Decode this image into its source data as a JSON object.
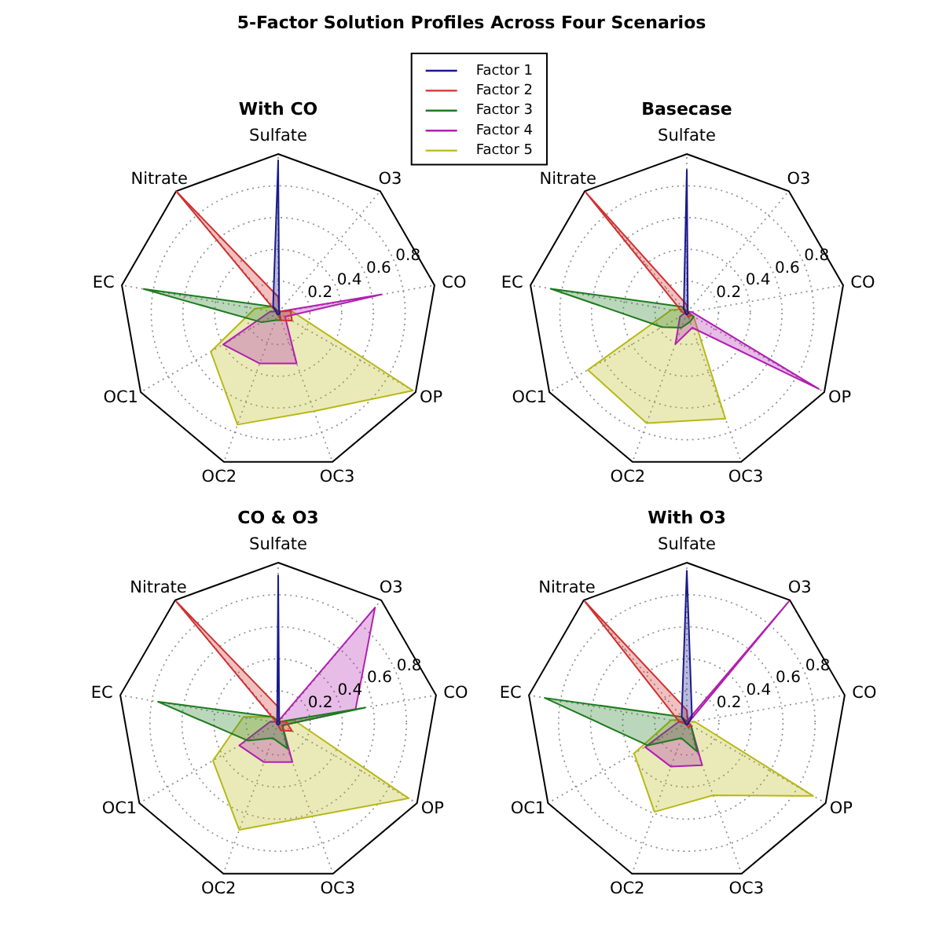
{
  "chart_data": [
    {
      "type": "radar",
      "title": "5-Factor Solution Profiles Across Four Scenarios",
      "subtitle": "With CO",
      "categories": [
        "Sulfate",
        "O3",
        "CO",
        "OP",
        "OC3",
        "OC2",
        "OC1",
        "EC",
        "Nitrate"
      ],
      "series": [
        {
          "name": "Factor 1",
          "color": "#1a1a8c",
          "values": [
            0.96,
            0.01,
            0.01,
            0.01,
            0.01,
            0.01,
            0.01,
            0.01,
            0.05
          ]
        },
        {
          "name": "Factor 2",
          "color": "#d03030",
          "values": [
            0.1,
            0.01,
            0.08,
            0.1,
            0.05,
            0.01,
            0.01,
            0.01,
            1.0
          ]
        },
        {
          "name": "Factor 3",
          "color": "#1e7b1e",
          "values": [
            0.01,
            0.01,
            0.01,
            0.01,
            0.05,
            0.05,
            0.12,
            0.86,
            0.05
          ]
        },
        {
          "name": "Factor 4",
          "color": "#b020b0",
          "values": [
            0.01,
            0.01,
            0.66,
            0.05,
            0.34,
            0.34,
            0.4,
            0.05,
            0.01
          ]
        },
        {
          "name": "Factor 5",
          "color": "#b8b818",
          "values": [
            0.01,
            0.01,
            0.08,
            0.98,
            0.66,
            0.75,
            0.49,
            0.15,
            0.05
          ]
        }
      ],
      "ylim": [
        0,
        1
      ],
      "yticks": [
        0.2,
        0.4,
        0.6,
        0.8
      ],
      "grid": true,
      "legend": "top right"
    },
    {
      "type": "radar",
      "subtitle": "Basecase",
      "categories": [
        "Sulfate",
        "O3",
        "CO",
        "OP",
        "OC3",
        "OC2",
        "OC1",
        "EC",
        "Nitrate"
      ],
      "series": [
        {
          "color": "#1a1a8c",
          "values": [
            0.9,
            0.01,
            0.01,
            0.01,
            0.01,
            0.01,
            0.01,
            0.01,
            0.03
          ]
        },
        {
          "color": "#d03030",
          "values": [
            0.05,
            0.01,
            0.01,
            0.03,
            0.03,
            0.01,
            0.01,
            0.03,
            0.99
          ]
        },
        {
          "color": "#1e7b1e",
          "values": [
            0.01,
            0.01,
            0.01,
            0.05,
            0.06,
            0.1,
            0.18,
            0.87,
            0.05
          ]
        },
        {
          "color": "#b020b0",
          "values": [
            0.01,
            0.01,
            0.03,
            0.96,
            0.1,
            0.21,
            0.05,
            0.01,
            0.01
          ]
        },
        {
          "color": "#b8b818",
          "values": [
            0.01,
            0.01,
            0.01,
            0.05,
            0.71,
            0.74,
            0.72,
            0.1,
            0.03
          ]
        }
      ],
      "ylim": [
        0,
        1
      ],
      "yticks": [
        0.2,
        0.4,
        0.6,
        0.8
      ],
      "grid": true
    },
    {
      "type": "radar",
      "subtitle": "CO & O3",
      "categories": [
        "Sulfate",
        "O3",
        "CO",
        "OP",
        "OC3",
        "OC2",
        "OC1",
        "EC",
        "Nitrate"
      ],
      "series": [
        {
          "color": "#1a1a8c",
          "values": [
            0.92,
            0.01,
            0.01,
            0.01,
            0.01,
            0.01,
            0.01,
            0.01,
            0.01
          ]
        },
        {
          "color": "#d03030",
          "values": [
            0.1,
            0.01,
            0.05,
            0.1,
            0.05,
            0.01,
            0.01,
            0.01,
            0.99
          ]
        },
        {
          "color": "#1e7b1e",
          "values": [
            0.01,
            0.01,
            0.55,
            0.03,
            0.17,
            0.1,
            0.22,
            0.76,
            0.05
          ]
        },
        {
          "color": "#b020b0",
          "values": [
            0.01,
            0.94,
            0.49,
            0.03,
            0.26,
            0.26,
            0.28,
            0.05,
            0.01
          ]
        },
        {
          "color": "#b8b818",
          "values": [
            0.01,
            0.01,
            0.1,
            0.94,
            0.62,
            0.71,
            0.47,
            0.22,
            0.05
          ]
        }
      ],
      "ylim": [
        0,
        1
      ],
      "yticks": [
        0.2,
        0.4,
        0.6,
        0.8
      ],
      "grid": true
    },
    {
      "type": "radar",
      "subtitle": "With O3",
      "categories": [
        "Sulfate",
        "O3",
        "CO",
        "OP",
        "OC3",
        "OC2",
        "OC1",
        "EC",
        "Nitrate"
      ],
      "series": [
        {
          "color": "#1a1a8c",
          "values": [
            0.95,
            0.05,
            0.01,
            0.01,
            0.01,
            0.01,
            0.01,
            0.01,
            0.05
          ]
        },
        {
          "color": "#d03030",
          "values": [
            0.08,
            0.01,
            0.01,
            0.03,
            0.03,
            0.01,
            0.01,
            0.05,
            0.99
          ]
        },
        {
          "color": "#1e7b1e",
          "values": [
            0.01,
            0.01,
            0.01,
            0.03,
            0.19,
            0.1,
            0.28,
            0.9,
            0.05
          ]
        },
        {
          "color": "#b020b0",
          "values": [
            0.01,
            0.99,
            0.01,
            0.03,
            0.28,
            0.29,
            0.3,
            0.05,
            0.01
          ]
        },
        {
          "color": "#b8b818",
          "values": [
            0.01,
            0.01,
            0.05,
            0.91,
            0.48,
            0.59,
            0.38,
            0.1,
            0.03
          ]
        }
      ],
      "ylim": [
        0,
        1
      ],
      "yticks": [
        0.2,
        0.4,
        0.6,
        0.8
      ],
      "grid": true
    }
  ]
}
